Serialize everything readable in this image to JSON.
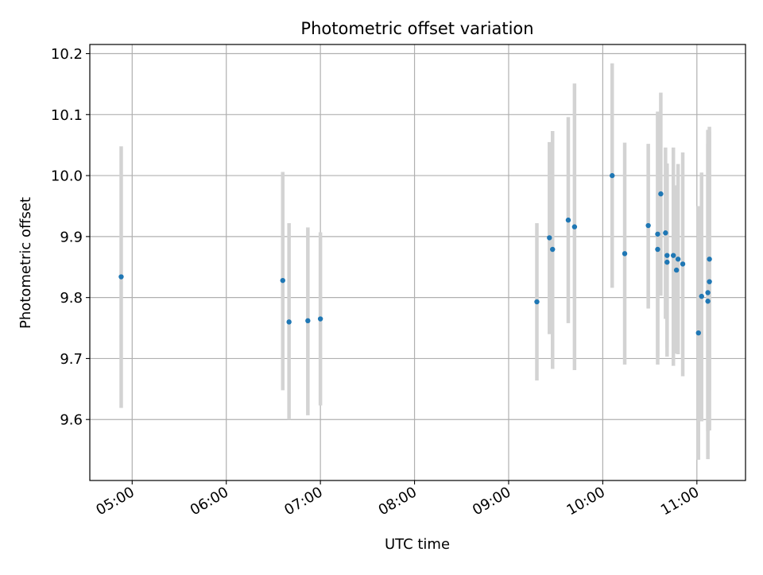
{
  "chart_data": {
    "type": "scatter",
    "title": "Photometric offset variation",
    "xlabel": "UTC time",
    "ylabel": "Photometric offset",
    "x_tick_labels": [
      "05:00",
      "06:00",
      "07:00",
      "08:00",
      "09:00",
      "10:00",
      "11:00"
    ],
    "x_tick_values": [
      "05:00",
      "06:00",
      "07:00",
      "08:00",
      "09:00",
      "10:00",
      "11:00"
    ],
    "y_tick_labels": [
      "9.6",
      "9.7",
      "9.8",
      "9.9",
      "10.0",
      "10.1",
      "10.2"
    ],
    "y_tick_values": [
      9.6,
      9.7,
      9.8,
      9.9,
      10.0,
      10.1,
      10.2
    ],
    "xlim": [
      "04:33",
      "11:31"
    ],
    "ylim": [
      9.5,
      10.215
    ],
    "grid": true,
    "colors": {
      "points": "#1f77b4",
      "errorbars": "#d3d3d3"
    },
    "points": [
      {
        "time": "04:53",
        "y": 9.834,
        "ylow": 9.619,
        "yhigh": 10.048
      },
      {
        "time": "06:36",
        "y": 9.828,
        "ylow": 9.648,
        "yhigh": 10.006
      },
      {
        "time": "06:40",
        "y": 9.76,
        "ylow": 9.6,
        "yhigh": 9.922
      },
      {
        "time": "06:52",
        "y": 9.762,
        "ylow": 9.607,
        "yhigh": 9.915
      },
      {
        "time": "07:00",
        "y": 9.765,
        "ylow": 9.623,
        "yhigh": 9.907
      },
      {
        "time": "09:18",
        "y": 9.793,
        "ylow": 9.664,
        "yhigh": 9.922
      },
      {
        "time": "09:26",
        "y": 9.898,
        "ylow": 9.74,
        "yhigh": 10.055
      },
      {
        "time": "09:28",
        "y": 9.879,
        "ylow": 9.683,
        "yhigh": 10.073
      },
      {
        "time": "09:38",
        "y": 9.927,
        "ylow": 9.758,
        "yhigh": 10.096
      },
      {
        "time": "09:42",
        "y": 9.916,
        "ylow": 9.681,
        "yhigh": 10.151
      },
      {
        "time": "10:06",
        "y": 10.0,
        "ylow": 9.816,
        "yhigh": 10.184
      },
      {
        "time": "10:14",
        "y": 9.872,
        "ylow": 9.69,
        "yhigh": 10.054
      },
      {
        "time": "10:29",
        "y": 9.918,
        "ylow": 9.782,
        "yhigh": 10.052
      },
      {
        "time": "10:35",
        "y": 9.904,
        "ylow": 9.703,
        "yhigh": 10.105
      },
      {
        "time": "10:35",
        "y": 9.879,
        "ylow": 9.69,
        "yhigh": 10.1
      },
      {
        "time": "10:37",
        "y": 9.97,
        "ylow": 9.803,
        "yhigh": 10.136
      },
      {
        "time": "10:40",
        "y": 9.906,
        "ylow": 9.765,
        "yhigh": 10.046
      },
      {
        "time": "10:41",
        "y": 9.869,
        "ylow": 9.718,
        "yhigh": 10.02
      },
      {
        "time": "10:41",
        "y": 9.858,
        "ylow": 9.703,
        "yhigh": 10.013
      },
      {
        "time": "10:45",
        "y": 9.869,
        "ylow": 9.688,
        "yhigh": 10.046
      },
      {
        "time": "10:47",
        "y": 9.845,
        "ylow": 9.708,
        "yhigh": 9.984
      },
      {
        "time": "10:48",
        "y": 9.863,
        "ylow": 9.707,
        "yhigh": 10.019
      },
      {
        "time": "10:51",
        "y": 9.855,
        "ylow": 9.671,
        "yhigh": 10.038
      },
      {
        "time": "11:01",
        "y": 9.742,
        "ylow": 9.534,
        "yhigh": 9.95
      },
      {
        "time": "11:03",
        "y": 9.802,
        "ylow": 9.597,
        "yhigh": 10.005
      },
      {
        "time": "11:07",
        "y": 9.794,
        "ylow": 9.535,
        "yhigh": 10.052
      },
      {
        "time": "11:07",
        "y": 9.808,
        "ylow": 9.58,
        "yhigh": 10.075
      },
      {
        "time": "11:08",
        "y": 9.826,
        "ylow": 9.582,
        "yhigh": 10.072
      },
      {
        "time": "11:08",
        "y": 9.863,
        "ylow": 9.648,
        "yhigh": 10.08
      }
    ]
  }
}
